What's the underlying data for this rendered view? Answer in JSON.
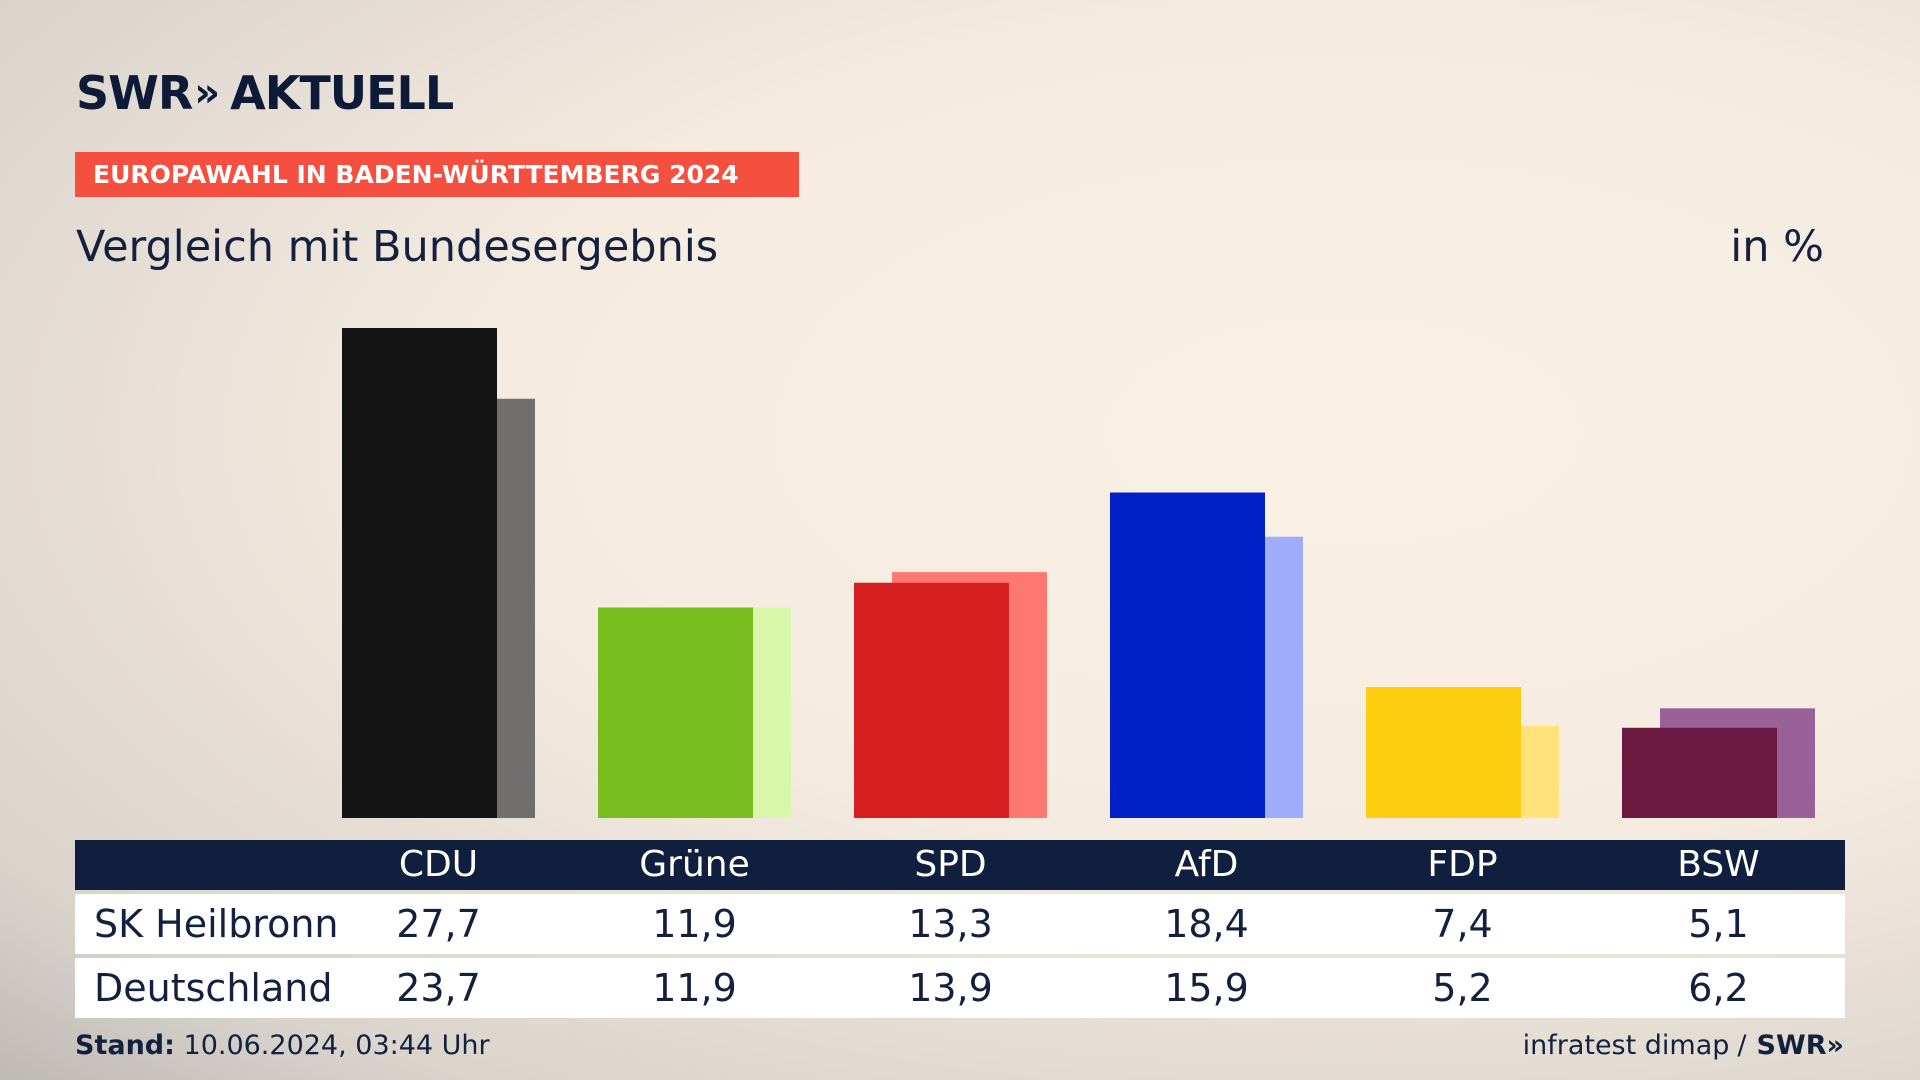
{
  "logo": {
    "brand": "SWR",
    "chevrons": "»",
    "name": "AKTUELL"
  },
  "banner": "EUROPAWAHL IN BADEN-WÜRTTEMBERG 2024",
  "subtitle": "Vergleich mit Bundesergebnis",
  "unit": "in %",
  "table": {
    "rows": [
      {
        "label": "SK Heilbronn",
        "values": [
          "27,7",
          "11,9",
          "13,3",
          "18,4",
          "7,4",
          "5,1"
        ]
      },
      {
        "label": "Deutschland",
        "values": [
          "23,7",
          "11,9",
          "13,9",
          "15,9",
          "5,2",
          "6,2"
        ]
      }
    ]
  },
  "footer": {
    "stand_label": "Stand:",
    "stand_value": "10.06.2024, 03:44 Uhr",
    "source": "infratest dimap",
    "separator": "/",
    "brand": "SWR»"
  },
  "chart_data": {
    "type": "bar",
    "categories": [
      "CDU",
      "Grüne",
      "SPD",
      "AfD",
      "FDP",
      "BSW"
    ],
    "series": [
      {
        "name": "SK Heilbronn",
        "values": [
          27.7,
          11.9,
          13.3,
          18.4,
          7.4,
          5.1
        ]
      },
      {
        "name": "Deutschland",
        "values": [
          23.7,
          11.9,
          13.9,
          15.9,
          5.2,
          6.2
        ]
      }
    ],
    "colors_primary": [
      "#141414",
      "#78bd1e",
      "#d61f1f",
      "#0020c8",
      "#ffcd0f",
      "#6a1a40"
    ],
    "colors_secondary": [
      "#706f6d",
      "#d8f7a8",
      "#ff7870",
      "#9eacfc",
      "#ffe37a",
      "#9a6098"
    ],
    "ylim": [
      0,
      27.7
    ],
    "grid": false,
    "legend": "table-below"
  }
}
